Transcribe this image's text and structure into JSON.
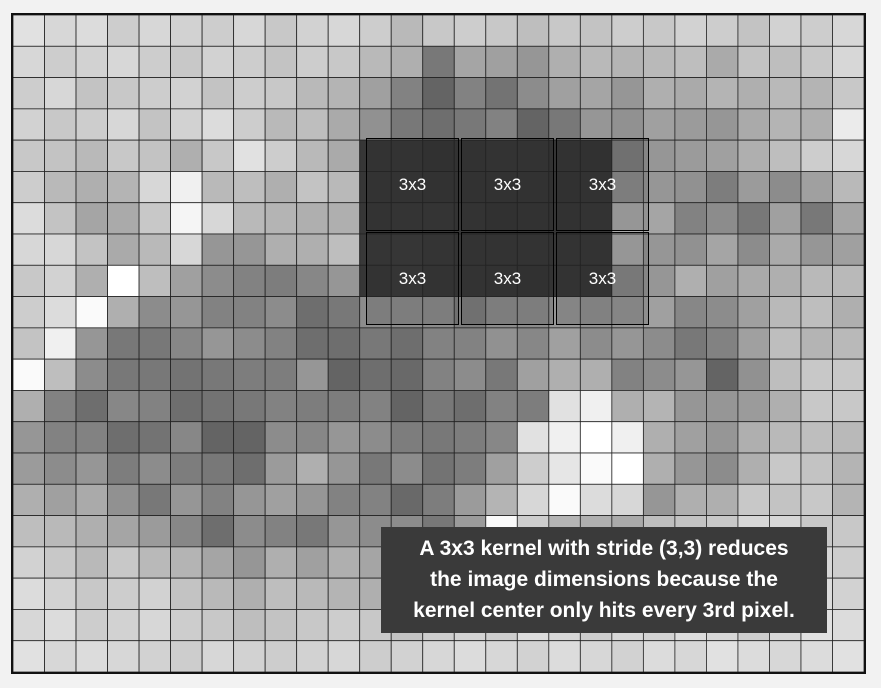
{
  "kernel_labels": [
    "3x3",
    "3x3",
    "3x3",
    "3x3",
    "3x3",
    "3x3"
  ],
  "caption": {
    "line1": "A 3x3 kernel with stride (3,3) reduces",
    "line2": "the image dimensions because the",
    "line3": "kernel center only hits every 3rd pixel."
  },
  "grid": {
    "rows": 21,
    "cols": 27,
    "dark_region": {
      "row_start": 4,
      "row_end": 9,
      "col_start": 11,
      "col_end": 19,
      "color": "#3e3e3e"
    },
    "pixel_values": [
      [
        225,
        215,
        220,
        205,
        215,
        210,
        205,
        215,
        200,
        210,
        215,
        205,
        185,
        200,
        205,
        200,
        190,
        200,
        195,
        205,
        200,
        210,
        205,
        195,
        210,
        205,
        215
      ],
      [
        215,
        205,
        210,
        215,
        205,
        200,
        210,
        205,
        195,
        205,
        200,
        185,
        175,
        120,
        165,
        160,
        150,
        175,
        185,
        180,
        185,
        190,
        170,
        195,
        190,
        200,
        215
      ],
      [
        205,
        215,
        195,
        200,
        205,
        210,
        195,
        205,
        200,
        185,
        180,
        160,
        130,
        100,
        130,
        115,
        140,
        160,
        165,
        150,
        175,
        170,
        180,
        175,
        185,
        180,
        200
      ],
      [
        210,
        200,
        205,
        215,
        195,
        210,
        220,
        205,
        185,
        190,
        170,
        145,
        120,
        110,
        120,
        130,
        100,
        120,
        150,
        145,
        160,
        155,
        150,
        170,
        180,
        175,
        235
      ],
      [
        200,
        195,
        185,
        200,
        195,
        175,
        200,
        225,
        205,
        185,
        170,
        150,
        140,
        110,
        120,
        150,
        145,
        130,
        115,
        125,
        150,
        155,
        160,
        175,
        190,
        205,
        215
      ],
      [
        205,
        185,
        175,
        180,
        215,
        240,
        185,
        190,
        175,
        195,
        185,
        155,
        150,
        130,
        125,
        130,
        120,
        115,
        130,
        140,
        150,
        145,
        125,
        155,
        140,
        160,
        185
      ],
      [
        220,
        195,
        165,
        170,
        200,
        245,
        215,
        185,
        180,
        175,
        175,
        150,
        165,
        165,
        145,
        115,
        120,
        130,
        145,
        170,
        165,
        130,
        140,
        120,
        160,
        120,
        165
      ],
      [
        215,
        215,
        195,
        170,
        185,
        215,
        150,
        150,
        175,
        175,
        190,
        175,
        190,
        160,
        150,
        140,
        145,
        150,
        140,
        170,
        150,
        145,
        165,
        140,
        170,
        150,
        160
      ],
      [
        200,
        210,
        175,
        255,
        190,
        160,
        140,
        130,
        125,
        135,
        150,
        150,
        170,
        150,
        150,
        125,
        115,
        135,
        125,
        135,
        150,
        175,
        160,
        170,
        175,
        185,
        185
      ],
      [
        205,
        220,
        250,
        175,
        140,
        150,
        130,
        130,
        140,
        110,
        120,
        140,
        140,
        140,
        125,
        140,
        140,
        150,
        145,
        150,
        160,
        135,
        140,
        160,
        185,
        190,
        175
      ],
      [
        195,
        240,
        150,
        120,
        120,
        135,
        150,
        140,
        130,
        110,
        110,
        120,
        110,
        130,
        130,
        145,
        135,
        160,
        140,
        150,
        140,
        120,
        130,
        160,
        190,
        180,
        185
      ],
      [
        250,
        190,
        140,
        120,
        120,
        115,
        120,
        125,
        125,
        150,
        100,
        110,
        105,
        130,
        140,
        120,
        160,
        175,
        175,
        130,
        140,
        150,
        100,
        145,
        190,
        200,
        200
      ],
      [
        175,
        130,
        110,
        135,
        130,
        110,
        115,
        120,
        130,
        125,
        125,
        130,
        100,
        120,
        110,
        130,
        125,
        225,
        240,
        175,
        180,
        150,
        150,
        155,
        175,
        200,
        200
      ],
      [
        150,
        130,
        130,
        110,
        115,
        135,
        100,
        100,
        140,
        135,
        150,
        140,
        125,
        120,
        125,
        135,
        225,
        240,
        255,
        240,
        175,
        160,
        150,
        175,
        185,
        190,
        185
      ],
      [
        155,
        140,
        150,
        125,
        140,
        125,
        120,
        110,
        155,
        175,
        150,
        120,
        140,
        115,
        125,
        160,
        205,
        230,
        250,
        255,
        175,
        150,
        140,
        175,
        200,
        195,
        180
      ],
      [
        175,
        160,
        170,
        145,
        120,
        150,
        130,
        150,
        160,
        150,
        130,
        130,
        105,
        125,
        155,
        180,
        215,
        250,
        220,
        215,
        150,
        175,
        175,
        200,
        195,
        200,
        180
      ],
      [
        190,
        185,
        175,
        165,
        155,
        135,
        110,
        140,
        130,
        120,
        150,
        140,
        140,
        120,
        155,
        250,
        205,
        180,
        175,
        170,
        190,
        195,
        200,
        215,
        215,
        200,
        200
      ],
      [
        210,
        200,
        185,
        200,
        185,
        180,
        165,
        150,
        175,
        160,
        175,
        165,
        160,
        190,
        185,
        205,
        200,
        200,
        190,
        210,
        205,
        210,
        205,
        205,
        210,
        215,
        205
      ],
      [
        220,
        210,
        200,
        205,
        210,
        195,
        185,
        175,
        190,
        185,
        180,
        175,
        185,
        195,
        200,
        210,
        215,
        205,
        200,
        210,
        215,
        205,
        210,
        215,
        205,
        220,
        210
      ],
      [
        215,
        220,
        205,
        210,
        215,
        205,
        200,
        190,
        195,
        200,
        205,
        200,
        195,
        205,
        210,
        205,
        220,
        215,
        205,
        215,
        210,
        220,
        215,
        205,
        215,
        225,
        220
      ],
      [
        225,
        215,
        220,
        215,
        210,
        205,
        215,
        210,
        205,
        210,
        215,
        205,
        210,
        215,
        220,
        215,
        210,
        220,
        215,
        210,
        220,
        215,
        225,
        220,
        215,
        220,
        225
      ]
    ]
  }
}
